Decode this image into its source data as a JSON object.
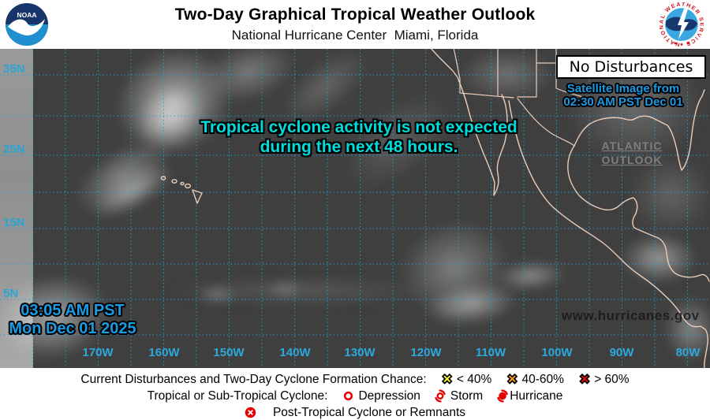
{
  "header": {
    "title": "Two-Day Graphical Tropical Weather Outlook",
    "subtitle": "National Hurricane Center  Miami, Florida",
    "noaa_logo_text": "NOAA",
    "nws_ring_text": "NATIONAL WEATHER SERVICE"
  },
  "map": {
    "no_disturbances": "No Disturbances",
    "satellite_line1": "Satellite Image from",
    "satellite_line2": "02:30 AM PST Dec 01",
    "atlantic_link_line1": "ATLANTIC",
    "atlantic_link_line2": "OUTLOOK",
    "message_line1": "Tropical cyclone activity is not expected",
    "message_line2": "during the next 48 hours.",
    "timestamp_line1": "03:05 AM PST",
    "timestamp_line2": "Mon Dec 01 2025",
    "watermark": "www.hurricanes.gov",
    "lat_labels": [
      "35N",
      "25N",
      "15N",
      "5N"
    ],
    "lon_labels": [
      "170W",
      "160W",
      "150W",
      "140W",
      "130W",
      "120W",
      "110W",
      "100W",
      "90W",
      "80W"
    ],
    "colors": {
      "grid": "#1fa3d6",
      "coast": "#f2d4c0",
      "message": "#00dcdc",
      "timestamp_blue": "#1b9ae4"
    }
  },
  "legend": {
    "line1_label": "Current Disturbances and Two-Day Cyclone Formation Chance:",
    "chance_items": [
      {
        "color": "#ffff2e",
        "label": "< 40%"
      },
      {
        "color": "#ff9d1e",
        "label": "40-60%"
      },
      {
        "color": "#ee0a0a",
        "label": "> 60%"
      }
    ],
    "line2_label": "Tropical or Sub-Tropical Cyclone:",
    "cyclone_items": [
      {
        "label": "Depression"
      },
      {
        "label": "Storm"
      },
      {
        "label": "Hurricane"
      }
    ],
    "line3_label": "Post-Tropical Cyclone or Remnants",
    "symbol_red": "#e60000"
  }
}
